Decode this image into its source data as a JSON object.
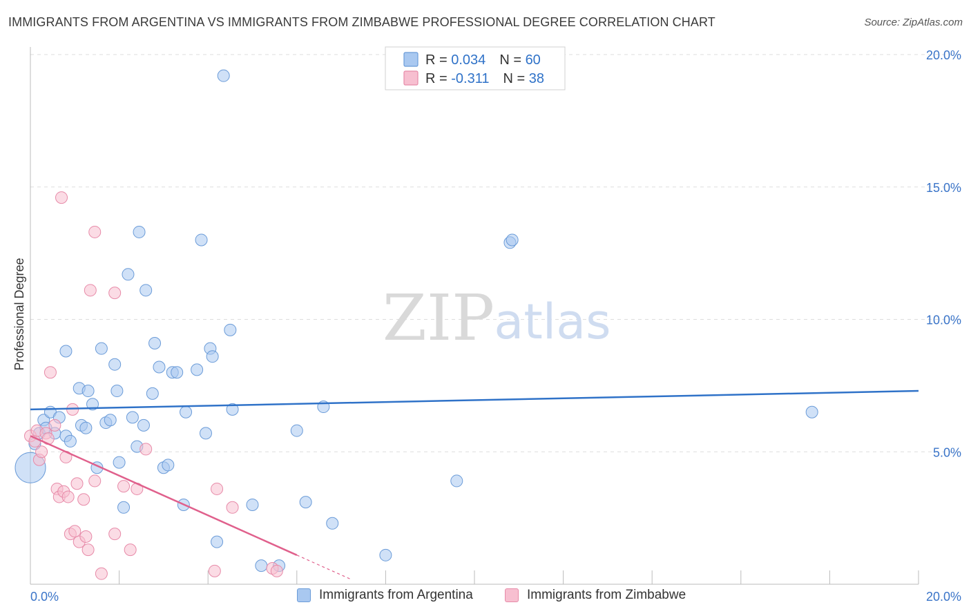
{
  "header": {
    "title": "IMMIGRANTS FROM ARGENTINA VS IMMIGRANTS FROM ZIMBABWE PROFESSIONAL DEGREE CORRELATION CHART",
    "source": "Source: ZipAtlas.com"
  },
  "watermark": {
    "zip": "ZIP",
    "atlas": "atlas"
  },
  "legend": {
    "rows": [
      {
        "r_label": "R = ",
        "r_value": "0.034",
        "n_label": "N = ",
        "n_value": "60"
      },
      {
        "r_label": "R = ",
        "r_value": "-0.311",
        "n_label": "N = ",
        "n_value": "38"
      }
    ]
  },
  "bottom_legend": {
    "argentina": "Immigrants from Argentina",
    "zimbabwe": "Immigrants from Zimbabwe"
  },
  "colors": {
    "argentina_fill": "#a9c8f0",
    "argentina_stroke": "#6a9bd8",
    "argentina_line": "#2f72c8",
    "zimbabwe_fill": "#f7bfd0",
    "zimbabwe_stroke": "#e78aa8",
    "zimbabwe_line": "#e0608c",
    "tick_text": "#3a74c8",
    "grid": "#dddddd"
  },
  "chart_data": {
    "type": "scatter",
    "title": "IMMIGRANTS FROM ARGENTINA VS IMMIGRANTS FROM ZIMBABWE PROFESSIONAL DEGREE CORRELATION CHART",
    "xlabel": "",
    "ylabel": "Professional Degree",
    "xlim": [
      0,
      20
    ],
    "ylim": [
      0,
      20
    ],
    "x_tick_labels": [
      "0.0%",
      "20.0%"
    ],
    "y_ticks": [
      5,
      10,
      15,
      20
    ],
    "y_tick_labels": [
      "5.0%",
      "10.0%",
      "15.0%",
      "20.0%"
    ],
    "grid": true,
    "legend_position": "top-center",
    "series": [
      {
        "name": "Immigrants from Argentina",
        "r": 0.034,
        "n": 60,
        "trend": {
          "x": [
            0,
            20
          ],
          "y": [
            6.6,
            7.3
          ]
        },
        "points": [
          [
            0.0,
            4.4
          ],
          [
            0.1,
            5.3
          ],
          [
            0.2,
            5.7
          ],
          [
            0.3,
            6.2
          ],
          [
            0.35,
            5.9
          ],
          [
            0.45,
            6.5
          ],
          [
            0.55,
            5.7
          ],
          [
            0.65,
            6.3
          ],
          [
            0.8,
            5.6
          ],
          [
            0.9,
            5.4
          ],
          [
            0.8,
            8.8
          ],
          [
            1.1,
            7.4
          ],
          [
            1.15,
            6.0
          ],
          [
            1.25,
            5.9
          ],
          [
            1.3,
            7.3
          ],
          [
            1.4,
            6.8
          ],
          [
            1.5,
            4.4
          ],
          [
            1.6,
            8.9
          ],
          [
            1.7,
            6.1
          ],
          [
            1.8,
            6.2
          ],
          [
            1.9,
            8.3
          ],
          [
            1.95,
            7.3
          ],
          [
            2.0,
            4.6
          ],
          [
            2.1,
            2.9
          ],
          [
            2.2,
            11.7
          ],
          [
            2.3,
            6.3
          ],
          [
            2.4,
            5.2
          ],
          [
            2.45,
            13.3
          ],
          [
            2.55,
            6.0
          ],
          [
            2.6,
            11.1
          ],
          [
            2.75,
            7.2
          ],
          [
            2.8,
            9.1
          ],
          [
            2.9,
            8.2
          ],
          [
            3.0,
            4.4
          ],
          [
            3.1,
            4.5
          ],
          [
            3.2,
            8.0
          ],
          [
            3.3,
            8.0
          ],
          [
            3.45,
            3.0
          ],
          [
            3.5,
            6.5
          ],
          [
            3.75,
            8.1
          ],
          [
            3.85,
            13.0
          ],
          [
            3.95,
            5.7
          ],
          [
            4.05,
            8.9
          ],
          [
            4.1,
            8.6
          ],
          [
            4.2,
            1.6
          ],
          [
            4.35,
            19.2
          ],
          [
            4.5,
            9.6
          ],
          [
            4.55,
            6.6
          ],
          [
            5.0,
            3.0
          ],
          [
            5.2,
            0.7
          ],
          [
            5.6,
            0.7
          ],
          [
            6.0,
            5.8
          ],
          [
            6.2,
            3.1
          ],
          [
            6.6,
            6.7
          ],
          [
            6.8,
            2.3
          ],
          [
            8.0,
            1.1
          ],
          [
            9.6,
            3.9
          ],
          [
            10.8,
            12.9
          ],
          [
            10.85,
            13.0
          ],
          [
            17.6,
            6.5
          ]
        ]
      },
      {
        "name": "Immigrants from Zimbabwe",
        "r": -0.311,
        "n": 38,
        "trend": {
          "x": [
            0,
            6
          ],
          "y": [
            5.6,
            1.1
          ]
        },
        "trend_dashed": {
          "x": [
            6,
            7.2
          ],
          "y": [
            1.1,
            0.2
          ]
        },
        "points": [
          [
            0.0,
            5.6
          ],
          [
            0.1,
            5.4
          ],
          [
            0.15,
            5.8
          ],
          [
            0.2,
            4.7
          ],
          [
            0.25,
            5.0
          ],
          [
            0.35,
            5.7
          ],
          [
            0.4,
            5.5
          ],
          [
            0.45,
            8.0
          ],
          [
            0.55,
            6.0
          ],
          [
            0.6,
            3.6
          ],
          [
            0.65,
            3.3
          ],
          [
            0.7,
            14.6
          ],
          [
            0.75,
            3.5
          ],
          [
            0.8,
            4.8
          ],
          [
            0.85,
            3.3
          ],
          [
            0.9,
            1.9
          ],
          [
            0.95,
            6.6
          ],
          [
            1.0,
            2.0
          ],
          [
            1.05,
            3.8
          ],
          [
            1.1,
            1.6
          ],
          [
            1.2,
            3.2
          ],
          [
            1.25,
            1.8
          ],
          [
            1.3,
            1.3
          ],
          [
            1.35,
            11.1
          ],
          [
            1.45,
            13.3
          ],
          [
            1.45,
            3.9
          ],
          [
            1.6,
            0.4
          ],
          [
            1.9,
            11.0
          ],
          [
            1.9,
            1.9
          ],
          [
            2.1,
            3.7
          ],
          [
            2.25,
            1.3
          ],
          [
            2.4,
            3.6
          ],
          [
            2.6,
            5.1
          ],
          [
            4.15,
            0.5
          ],
          [
            4.2,
            3.6
          ],
          [
            4.55,
            2.9
          ],
          [
            5.45,
            0.6
          ],
          [
            5.55,
            0.5
          ]
        ]
      }
    ]
  }
}
